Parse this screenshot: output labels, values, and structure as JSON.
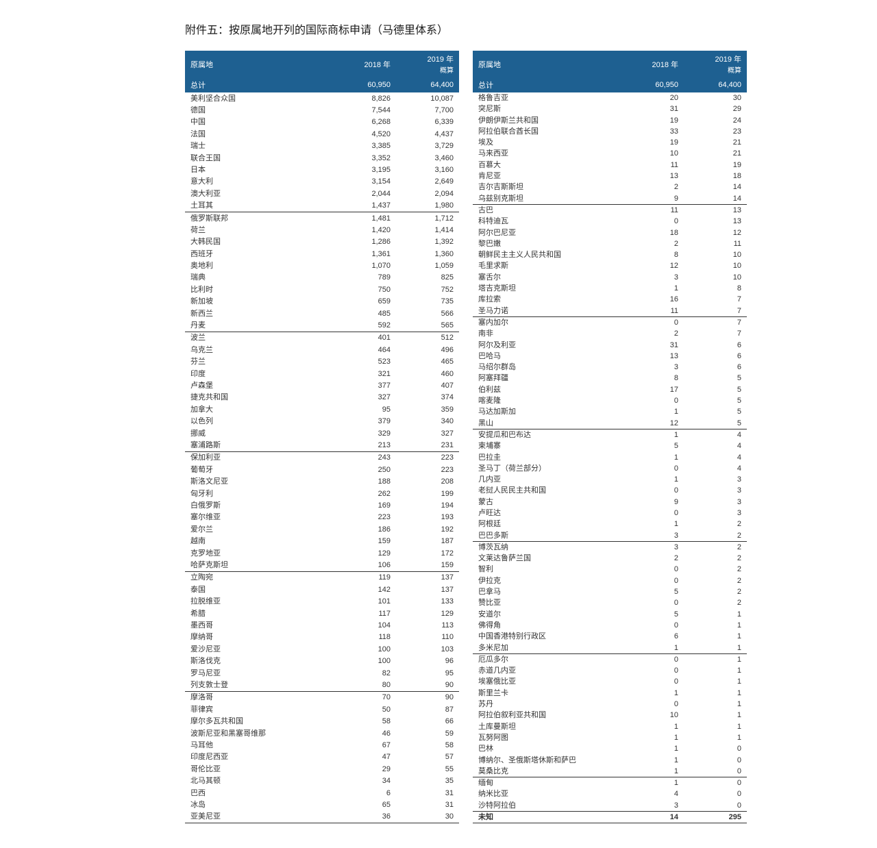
{
  "title": "附件五：按原属地开列的国际商标申请（马德里体系）",
  "headers": {
    "origin": "原属地",
    "y2018": "2018 年",
    "y2019": "2019 年",
    "y2019_sub": "概算"
  },
  "total": {
    "label": "总计",
    "v2018": "60,950",
    "v2019": "64,400"
  },
  "left_groups": [
    [
      {
        "n": "美利坚合众国",
        "a": "8,826",
        "b": "10,087"
      },
      {
        "n": "德国",
        "a": "7,544",
        "b": "7,700"
      },
      {
        "n": "中国",
        "a": "6,268",
        "b": "6,339"
      },
      {
        "n": "法国",
        "a": "4,520",
        "b": "4,437"
      },
      {
        "n": "瑞士",
        "a": "3,385",
        "b": "3,729"
      },
      {
        "n": "联合王国",
        "a": "3,352",
        "b": "3,460"
      },
      {
        "n": "日本",
        "a": "3,195",
        "b": "3,160"
      },
      {
        "n": "意大利",
        "a": "3,154",
        "b": "2,649"
      },
      {
        "n": "澳大利亚",
        "a": "2,044",
        "b": "2,094"
      },
      {
        "n": "土耳其",
        "a": "1,437",
        "b": "1,980"
      }
    ],
    [
      {
        "n": "俄罗斯联邦",
        "a": "1,481",
        "b": "1,712"
      },
      {
        "n": "荷兰",
        "a": "1,420",
        "b": "1,414"
      },
      {
        "n": "大韩民国",
        "a": "1,286",
        "b": "1,392"
      },
      {
        "n": "西班牙",
        "a": "1,361",
        "b": "1,360"
      },
      {
        "n": "奥地利",
        "a": "1,070",
        "b": "1,059"
      },
      {
        "n": "瑞典",
        "a": "789",
        "b": "825"
      },
      {
        "n": "比利时",
        "a": "750",
        "b": "752"
      },
      {
        "n": "新加坡",
        "a": "659",
        "b": "735"
      },
      {
        "n": "新西兰",
        "a": "485",
        "b": "566"
      },
      {
        "n": "丹麦",
        "a": "592",
        "b": "565"
      }
    ],
    [
      {
        "n": "波兰",
        "a": "401",
        "b": "512"
      },
      {
        "n": "乌克兰",
        "a": "464",
        "b": "496"
      },
      {
        "n": "芬兰",
        "a": "523",
        "b": "465"
      },
      {
        "n": "印度",
        "a": "321",
        "b": "460"
      },
      {
        "n": "卢森堡",
        "a": "377",
        "b": "407"
      },
      {
        "n": "捷克共和国",
        "a": "327",
        "b": "374"
      },
      {
        "n": "加拿大",
        "a": "95",
        "b": "359"
      },
      {
        "n": "以色列",
        "a": "379",
        "b": "340"
      },
      {
        "n": "挪威",
        "a": "329",
        "b": "327"
      },
      {
        "n": "塞浦路斯",
        "a": "213",
        "b": "231"
      }
    ],
    [
      {
        "n": "保加利亚",
        "a": "243",
        "b": "223"
      },
      {
        "n": "葡萄牙",
        "a": "250",
        "b": "223"
      },
      {
        "n": "斯洛文尼亚",
        "a": "188",
        "b": "208"
      },
      {
        "n": "匈牙利",
        "a": "262",
        "b": "199"
      },
      {
        "n": "白俄罗斯",
        "a": "169",
        "b": "194"
      },
      {
        "n": "塞尔维亚",
        "a": "223",
        "b": "193"
      },
      {
        "n": "爱尔兰",
        "a": "186",
        "b": "192"
      },
      {
        "n": "越南",
        "a": "159",
        "b": "187"
      },
      {
        "n": "克罗地亚",
        "a": "129",
        "b": "172"
      },
      {
        "n": "哈萨克斯坦",
        "a": "106",
        "b": "159"
      }
    ],
    [
      {
        "n": "立陶宛",
        "a": "119",
        "b": "137"
      },
      {
        "n": "泰国",
        "a": "142",
        "b": "137"
      },
      {
        "n": "拉脱维亚",
        "a": "101",
        "b": "133"
      },
      {
        "n": "希腊",
        "a": "117",
        "b": "129"
      },
      {
        "n": "墨西哥",
        "a": "104",
        "b": "113"
      },
      {
        "n": "摩纳哥",
        "a": "118",
        "b": "110"
      },
      {
        "n": "爱沙尼亚",
        "a": "100",
        "b": "103"
      },
      {
        "n": "斯洛伐克",
        "a": "100",
        "b": "96"
      },
      {
        "n": "罗马尼亚",
        "a": "82",
        "b": "95"
      },
      {
        "n": "列支敦士登",
        "a": "80",
        "b": "90"
      }
    ],
    [
      {
        "n": "摩洛哥",
        "a": "70",
        "b": "90"
      },
      {
        "n": "菲律宾",
        "a": "50",
        "b": "87"
      },
      {
        "n": "摩尔多瓦共和国",
        "a": "58",
        "b": "66"
      },
      {
        "n": "波斯尼亚和黑塞哥维那",
        "a": "46",
        "b": "59"
      },
      {
        "n": "马耳他",
        "a": "67",
        "b": "58"
      },
      {
        "n": "印度尼西亚",
        "a": "47",
        "b": "57"
      },
      {
        "n": "哥伦比亚",
        "a": "29",
        "b": "55"
      },
      {
        "n": "北马其顿",
        "a": "34",
        "b": "35"
      },
      {
        "n": "巴西",
        "a": "6",
        "b": "31"
      },
      {
        "n": "冰岛",
        "a": "65",
        "b": "31"
      },
      {
        "n": "亚美尼亚",
        "a": "36",
        "b": "30"
      }
    ]
  ],
  "right_groups": [
    [
      {
        "n": "格鲁吉亚",
        "a": "20",
        "b": "30"
      },
      {
        "n": "突尼斯",
        "a": "31",
        "b": "29"
      },
      {
        "n": "伊朗伊斯兰共和国",
        "a": "19",
        "b": "24"
      },
      {
        "n": "阿拉伯联合酋长国",
        "a": "33",
        "b": "23"
      },
      {
        "n": "埃及",
        "a": "19",
        "b": "21"
      },
      {
        "n": "马来西亚",
        "a": "10",
        "b": "21"
      },
      {
        "n": "百慕大",
        "a": "11",
        "b": "19"
      },
      {
        "n": "肯尼亚",
        "a": "13",
        "b": "18"
      },
      {
        "n": "吉尔吉斯斯坦",
        "a": "2",
        "b": "14"
      },
      {
        "n": "乌兹别克斯坦",
        "a": "9",
        "b": "14"
      }
    ],
    [
      {
        "n": "古巴",
        "a": "11",
        "b": "13"
      },
      {
        "n": "科特迪瓦",
        "a": "0",
        "b": "13"
      },
      {
        "n": "阿尔巴尼亚",
        "a": "18",
        "b": "12"
      },
      {
        "n": "黎巴嫩",
        "a": "2",
        "b": "11"
      },
      {
        "n": "朝鲜民主主义人民共和国",
        "a": "8",
        "b": "10"
      },
      {
        "n": "毛里求斯",
        "a": "12",
        "b": "10"
      },
      {
        "n": "塞舌尔",
        "a": "3",
        "b": "10"
      },
      {
        "n": "塔吉克斯坦",
        "a": "1",
        "b": "8"
      },
      {
        "n": "库拉索",
        "a": "16",
        "b": "7"
      },
      {
        "n": "圣马力诺",
        "a": "11",
        "b": "7"
      }
    ],
    [
      {
        "n": "塞内加尔",
        "a": "0",
        "b": "7"
      },
      {
        "n": "南非",
        "a": "2",
        "b": "7"
      },
      {
        "n": "阿尔及利亚",
        "a": "31",
        "b": "6"
      },
      {
        "n": "巴哈马",
        "a": "13",
        "b": "6"
      },
      {
        "n": "马绍尔群岛",
        "a": "3",
        "b": "6"
      },
      {
        "n": "阿塞拜疆",
        "a": "8",
        "b": "5"
      },
      {
        "n": "伯利兹",
        "a": "17",
        "b": "5"
      },
      {
        "n": "喀麦隆",
        "a": "0",
        "b": "5"
      },
      {
        "n": "马达加斯加",
        "a": "1",
        "b": "5"
      },
      {
        "n": "黑山",
        "a": "12",
        "b": "5"
      }
    ],
    [
      {
        "n": "安提瓜和巴布达",
        "a": "1",
        "b": "4"
      },
      {
        "n": "柬埔寨",
        "a": "5",
        "b": "4"
      },
      {
        "n": "巴拉圭",
        "a": "1",
        "b": "4"
      },
      {
        "n": "圣马丁（荷兰部分）",
        "a": "0",
        "b": "4"
      },
      {
        "n": "几内亚",
        "a": "1",
        "b": "3"
      },
      {
        "n": "老挝人民民主共和国",
        "a": "0",
        "b": "3"
      },
      {
        "n": "蒙古",
        "a": "9",
        "b": "3"
      },
      {
        "n": "卢旺达",
        "a": "0",
        "b": "3"
      },
      {
        "n": "阿根廷",
        "a": "1",
        "b": "2"
      },
      {
        "n": "巴巴多斯",
        "a": "3",
        "b": "2"
      }
    ],
    [
      {
        "n": "博茨瓦纳",
        "a": "3",
        "b": "2"
      },
      {
        "n": "文莱达鲁萨兰国",
        "a": "2",
        "b": "2"
      },
      {
        "n": "智利",
        "a": "0",
        "b": "2"
      },
      {
        "n": "伊拉克",
        "a": "0",
        "b": "2"
      },
      {
        "n": "巴拿马",
        "a": "5",
        "b": "2"
      },
      {
        "n": "赞比亚",
        "a": "0",
        "b": "2"
      },
      {
        "n": "安道尔",
        "a": "5",
        "b": "1"
      },
      {
        "n": "佛得角",
        "a": "0",
        "b": "1"
      },
      {
        "n": "中国香港特别行政区",
        "a": "6",
        "b": "1"
      },
      {
        "n": "多米尼加",
        "a": "1",
        "b": "1"
      }
    ],
    [
      {
        "n": "厄瓜多尔",
        "a": "0",
        "b": "1"
      },
      {
        "n": "赤道几内亚",
        "a": "0",
        "b": "1"
      },
      {
        "n": "埃塞俄比亚",
        "a": "0",
        "b": "1"
      },
      {
        "n": "斯里兰卡",
        "a": "1",
        "b": "1"
      },
      {
        "n": "苏丹",
        "a": "0",
        "b": "1"
      },
      {
        "n": "阿拉伯叙利亚共和国",
        "a": "10",
        "b": "1"
      },
      {
        "n": "土库曼斯坦",
        "a": "1",
        "b": "1"
      },
      {
        "n": "瓦努阿图",
        "a": "1",
        "b": "1"
      },
      {
        "n": "巴林",
        "a": "1",
        "b": "0"
      },
      {
        "n": "博纳尔、圣俄斯塔休斯和萨巴",
        "a": "1",
        "b": "0"
      },
      {
        "n": "莫桑比克",
        "a": "1",
        "b": "0"
      }
    ],
    [
      {
        "n": "缅甸",
        "a": "1",
        "b": "0"
      },
      {
        "n": "纳米比亚",
        "a": "4",
        "b": "0"
      },
      {
        "n": "沙特阿拉伯",
        "a": "3",
        "b": "0"
      }
    ]
  ],
  "unknown": {
    "label": "未知",
    "v2018": "14",
    "v2019": "295"
  }
}
